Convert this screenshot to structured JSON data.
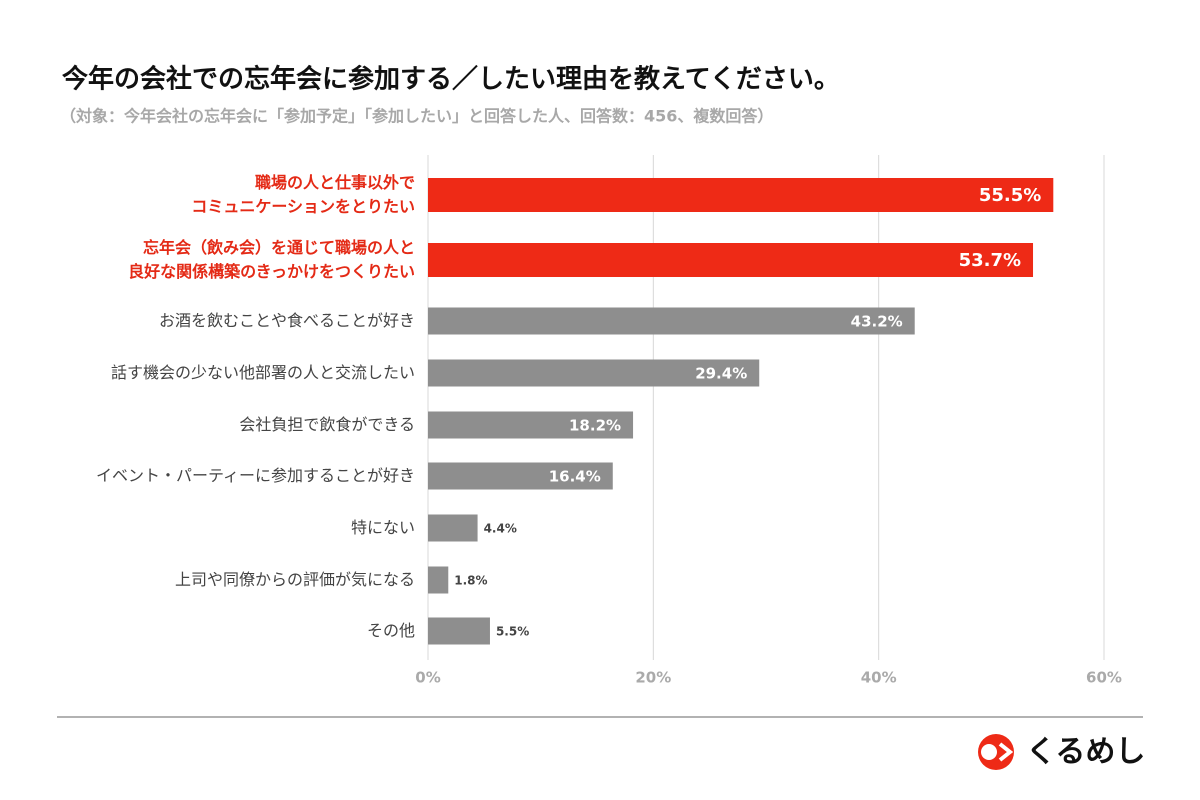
{
  "chart_data": {
    "type": "bar",
    "orientation": "horizontal",
    "title": "今年の会社での忘年会に参加する／したい理由を教えてください。",
    "subtitle": "（対象：今年会社の忘年会に「参加予定」「参加したい」と回答した人、回答数：456、複数回答）",
    "categories": [
      "職場の人と仕事以外で\nコミュニケーションをとりたい",
      "忘年会（飲み会）を通じて職場の人と\n良好な関係構築のきっかけをつくりたい",
      "お酒を飲むことや食べることが好き",
      "話す機会の少ない他部署の人と交流したい",
      "会社負担で飲食ができる",
      "イベント・パーティーに参加することが好き",
      "特にない",
      "上司や同僚からの評価が気になる",
      "その他"
    ],
    "values": [
      55.5,
      53.7,
      43.2,
      29.4,
      18.2,
      16.4,
      4.4,
      1.8,
      5.5
    ],
    "value_labels": [
      "55.5%",
      "53.7%",
      "43.2%",
      "29.4%",
      "18.2%",
      "16.4%",
      "4.4%",
      "1.8%",
      "5.5%"
    ],
    "colors": [
      "#ee2a16",
      "#ee2a16",
      "#8e8e8e",
      "#8e8e8e",
      "#8e8e8e",
      "#8e8e8e",
      "#8e8e8e",
      "#8e8e8e",
      "#8e8e8e"
    ],
    "label_colors": [
      "#e42a16",
      "#e42a16",
      "#444444",
      "#444444",
      "#444444",
      "#444444",
      "#444444",
      "#444444",
      "#444444"
    ],
    "xlim": [
      0,
      60
    ],
    "xticks": [
      {
        "value": 0,
        "label": "0%"
      },
      {
        "value": 20,
        "label": "20%"
      },
      {
        "value": 40,
        "label": "40%"
      },
      {
        "value": 60,
        "label": "60%"
      }
    ],
    "grid": true
  },
  "logo": "くるめし"
}
